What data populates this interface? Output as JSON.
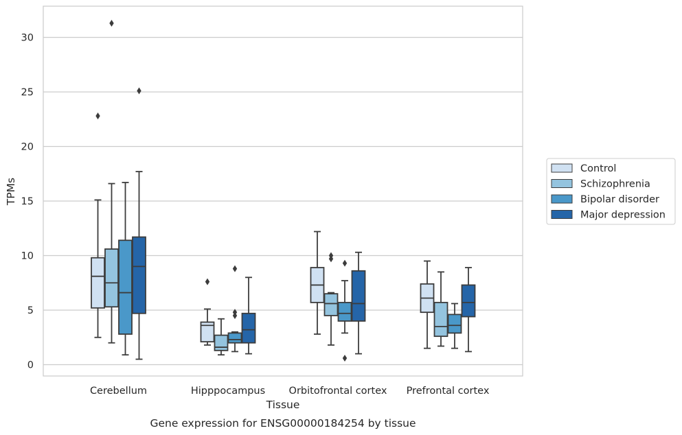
{
  "chart_data": {
    "type": "boxplot",
    "title": "",
    "caption": "Gene expression for ENSG00000184254 by tissue",
    "xlabel": "Tissue",
    "ylabel": "TPMs",
    "ylim": [
      -1,
      32.8
    ],
    "yticks": [
      0,
      5,
      10,
      15,
      20,
      25,
      30
    ],
    "grid": "horizontal",
    "legend_position": "right",
    "categories": [
      "Cerebellum",
      "Hipppocampus",
      "Orbitofrontal cortex",
      "Prefrontal cortex"
    ],
    "series": [
      {
        "name": "Control",
        "color": "#d0e1f2",
        "boxes": [
          {
            "whislo": 2.5,
            "q1": 5.2,
            "med": 8.1,
            "q3": 9.8,
            "whishi": 15.1,
            "fliers": [
              22.8
            ]
          },
          {
            "whislo": 1.8,
            "q1": 2.1,
            "med": 3.6,
            "q3": 3.9,
            "whishi": 5.1,
            "fliers": [
              7.6
            ]
          },
          {
            "whislo": 2.8,
            "q1": 5.7,
            "med": 7.3,
            "q3": 8.9,
            "whishi": 12.2,
            "fliers": []
          },
          {
            "whislo": 1.5,
            "q1": 4.8,
            "med": 6.1,
            "q3": 7.4,
            "whishi": 9.5,
            "fliers": []
          }
        ]
      },
      {
        "name": "Schizophrenia",
        "color": "#94c4df",
        "boxes": [
          {
            "whislo": 2.0,
            "q1": 5.3,
            "med": 7.5,
            "q3": 10.6,
            "whishi": 16.6,
            "fliers": [
              31.3
            ]
          },
          {
            "whislo": 0.9,
            "q1": 1.3,
            "med": 1.6,
            "q3": 2.7,
            "whishi": 4.2,
            "fliers": []
          },
          {
            "whislo": 1.8,
            "q1": 4.5,
            "med": 5.6,
            "q3": 6.5,
            "whishi": 6.6,
            "fliers": [
              9.7,
              10.0
            ]
          },
          {
            "whislo": 1.7,
            "q1": 2.6,
            "med": 3.5,
            "q3": 5.7,
            "whishi": 8.5,
            "fliers": []
          }
        ]
      },
      {
        "name": "Bipolar disorder",
        "color": "#4a98c9",
        "boxes": [
          {
            "whislo": 0.9,
            "q1": 2.8,
            "med": 6.6,
            "q3": 11.4,
            "whishi": 16.7,
            "fliers": []
          },
          {
            "whislo": 1.2,
            "q1": 2.0,
            "med": 2.3,
            "q3": 2.9,
            "whishi": 3.0,
            "fliers": [
              4.5,
              4.8,
              8.8
            ]
          },
          {
            "whislo": 2.9,
            "q1": 4.0,
            "med": 4.7,
            "q3": 5.7,
            "whishi": 7.7,
            "fliers": [
              0.6,
              9.3
            ]
          },
          {
            "whislo": 1.5,
            "q1": 2.9,
            "med": 3.6,
            "q3": 4.6,
            "whishi": 5.6,
            "fliers": []
          }
        ]
      },
      {
        "name": "Major depression",
        "color": "#2565a8",
        "boxes": [
          {
            "whislo": 0.5,
            "q1": 4.7,
            "med": 9.0,
            "q3": 11.7,
            "whishi": 17.7,
            "fliers": [
              25.1
            ]
          },
          {
            "whislo": 1.0,
            "q1": 2.0,
            "med": 3.2,
            "q3": 4.7,
            "whishi": 8.0,
            "fliers": []
          },
          {
            "whislo": 1.0,
            "q1": 4.0,
            "med": 5.6,
            "q3": 8.6,
            "whishi": 10.3,
            "fliers": []
          },
          {
            "whislo": 1.2,
            "q1": 4.4,
            "med": 5.7,
            "q3": 7.3,
            "whishi": 8.9,
            "fliers": []
          }
        ]
      }
    ]
  }
}
